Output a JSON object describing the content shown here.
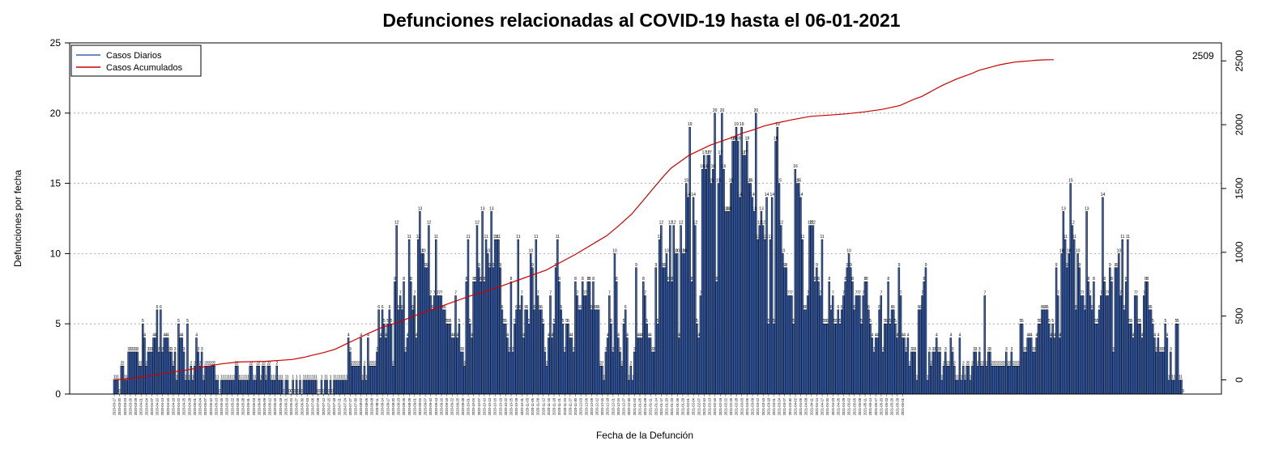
{
  "chart_data": {
    "type": "bar",
    "title": "Defunciones relacionadas al COVID-19 hasta el 06-01-2021",
    "xlabel": "Fecha de la Defunción",
    "ylabel": "Defunciones por fecha",
    "ylim": [
      0,
      25
    ],
    "y_ticks": [
      "0",
      "5",
      "10",
      "15",
      "20",
      "25"
    ],
    "y2lim": [
      -100,
      2660
    ],
    "y2_ticks": [
      "0",
      "500",
      "1000",
      "1500",
      "2000",
      "2500"
    ],
    "grid": "horizontal dotted",
    "legend_position": "top-left",
    "end_label": "2509",
    "start_date": "2020-03-17",
    "end_date": "2021-06-01",
    "x_tick_labels": [
      "2020-03-17",
      "2020-03-20",
      "2020-03-23",
      "2020-03-26",
      "2020-03-29",
      "2020-04-01",
      "2020-04-04",
      "2020-04-07",
      "2020-04-10",
      "2020-04-13",
      "2020-04-16",
      "2020-04-19",
      "2020-04-22",
      "2020-04-25",
      "2020-04-28",
      "2020-05-01",
      "2020-05-04",
      "2020-05-07",
      "2020-05-10",
      "2020-05-13",
      "2020-05-16",
      "2020-05-19",
      "2020-05-22",
      "2020-05-25",
      "2020-05-28",
      "2020-05-31",
      "2020-06-03",
      "2020-06-06",
      "2020-06-09",
      "2020-06-12",
      "2020-06-15",
      "2020-06-18",
      "2020-06-21",
      "2020-06-24",
      "2020-06-27",
      "2020-06-30",
      "2020-07-03",
      "2020-07-06",
      "2020-07-09",
      "2020-07-12",
      "2020-07-15",
      "2020-07-18",
      "2020-07-21",
      "2020-07-24",
      "2020-07-27",
      "2020-07-30",
      "2020-08-02",
      "2020-08-05",
      "2020-08-08",
      "2020-08-11",
      "2020-08-14",
      "2020-08-17",
      "2020-08-20",
      "2020-08-23",
      "2020-08-26",
      "2020-08-29",
      "2020-09-01",
      "2020-09-04",
      "2020-09-07",
      "2020-09-10",
      "2020-09-13",
      "2020-09-16",
      "2020-09-19",
      "2020-09-22",
      "2020-09-25",
      "2020-09-28",
      "2020-10-01",
      "2020-10-04",
      "2020-10-07",
      "2020-10-10",
      "2020-10-13",
      "2020-10-16",
      "2020-10-19",
      "2020-10-22",
      "2020-10-25",
      "2020-10-28",
      "2020-10-31",
      "2020-11-03",
      "2020-11-06",
      "2020-11-09",
      "2020-11-12",
      "2020-11-15",
      "2020-11-18",
      "2020-11-21",
      "2020-11-24",
      "2020-11-27",
      "2020-11-30",
      "2020-12-03",
      "2020-12-06",
      "2020-12-09",
      "2020-12-12",
      "2020-12-15",
      "2020-12-18",
      "2020-12-21",
      "2020-12-24",
      "2020-12-27",
      "2020-12-30",
      "2021-01-02",
      "2021-01-05",
      "2021-01-08",
      "2021-01-11",
      "2021-01-14",
      "2021-01-17",
      "2021-01-20",
      "2021-01-23",
      "2021-01-26",
      "2021-01-29",
      "2021-02-01",
      "2021-02-04",
      "2021-02-07",
      "2021-02-10",
      "2021-02-13",
      "2021-02-16",
      "2021-02-19",
      "2021-02-22",
      "2021-02-25",
      "2021-02-28",
      "2021-03-03",
      "2021-03-06",
      "2021-03-09",
      "2021-03-12",
      "2021-03-15",
      "2021-03-18",
      "2021-03-21",
      "2021-03-24",
      "2021-03-27",
      "2021-03-30",
      "2021-04-02",
      "2021-04-05",
      "2021-04-08",
      "2021-04-11",
      "2021-04-14",
      "2021-04-17",
      "2021-04-20",
      "2021-04-23",
      "2021-04-26",
      "2021-04-29",
      "2021-05-02",
      "2021-05-05",
      "2021-05-08",
      "2021-05-11",
      "2021-05-14",
      "2021-05-17",
      "2021-05-20",
      "2021-05-23",
      "2021-05-26",
      "2021-05-29",
      "2021-06-01"
    ],
    "series": [
      {
        "name": "Casos Diarios",
        "type": "bar",
        "color": "#3b63b5",
        "values": [
          1,
          1,
          1,
          0,
          2,
          2,
          1,
          1,
          3,
          3,
          3,
          3,
          3,
          3,
          2,
          2,
          5,
          4,
          2,
          3,
          3,
          3,
          4,
          4,
          6,
          3,
          6,
          3,
          4,
          4,
          4,
          3,
          3,
          2,
          3,
          1,
          5,
          4,
          4,
          3,
          1,
          5,
          1,
          2,
          1,
          2,
          4,
          3,
          2,
          3,
          1,
          2,
          2,
          2,
          2,
          2,
          2,
          1,
          1,
          0,
          1,
          1,
          1,
          1,
          1,
          1,
          1,
          1,
          2,
          2,
          1,
          1,
          1,
          1,
          1,
          1,
          2,
          2,
          1,
          1,
          2,
          2,
          1,
          2,
          2,
          1,
          2,
          2,
          1,
          1,
          1,
          2,
          1,
          1,
          1,
          0,
          1,
          1,
          0,
          0,
          1,
          0,
          1,
          0,
          1,
          0,
          1,
          1,
          1,
          1,
          1,
          1,
          1,
          1,
          0,
          0,
          1,
          0,
          1,
          1,
          0,
          1,
          0,
          1,
          1,
          1,
          1,
          1,
          1,
          1,
          1,
          4,
          3,
          2,
          2,
          2,
          2,
          2,
          4,
          1,
          2,
          1,
          4,
          2,
          2,
          2,
          2,
          3,
          6,
          4,
          6,
          5,
          4,
          5,
          6,
          5,
          2,
          8,
          12,
          6,
          7,
          6,
          8,
          3,
          4,
          11,
          8,
          6,
          7,
          4,
          11,
          13,
          10,
          10,
          9,
          9,
          12,
          7,
          6,
          7,
          11,
          7,
          7,
          7,
          6,
          6,
          5,
          5,
          5,
          4,
          4,
          7,
          4,
          5,
          3,
          3,
          2,
          8,
          11,
          5,
          4,
          8,
          8,
          12,
          9,
          8,
          13,
          8,
          11,
          10,
          9,
          13,
          9,
          11,
          11,
          11,
          9,
          6,
          5,
          5,
          4,
          3,
          8,
          3,
          5,
          6,
          11,
          6,
          7,
          4,
          6,
          6,
          5,
          10,
          9,
          6,
          11,
          7,
          6,
          6,
          5,
          3,
          2,
          4,
          7,
          4,
          5,
          9,
          11,
          8,
          6,
          5,
          3,
          5,
          5,
          4,
          4,
          3,
          8,
          7,
          6,
          6,
          8,
          7,
          7,
          8,
          8,
          6,
          8,
          6,
          6,
          6,
          2,
          2,
          1,
          3,
          4,
          7,
          5,
          3,
          10,
          8,
          4,
          3,
          2,
          5,
          6,
          4,
          1,
          2,
          1,
          3,
          9,
          4,
          4,
          4,
          8,
          7,
          5,
          4,
          4,
          3,
          3,
          9,
          5,
          11,
          12,
          9,
          9,
          10,
          8,
          12,
          8,
          12,
          10,
          10,
          4,
          12,
          10,
          10,
          15,
          14,
          19,
          8,
          14,
          12,
          5,
          4,
          7,
          16,
          17,
          16,
          17,
          17,
          15,
          16,
          20,
          8,
          15,
          17,
          20,
          16,
          13,
          13,
          13,
          15,
          18,
          18,
          19,
          18,
          14,
          19,
          17,
          17,
          18,
          15,
          15,
          14,
          13,
          20,
          11,
          12,
          13,
          12,
          11,
          14,
          5,
          11,
          14,
          5,
          18,
          19,
          15,
          12,
          10,
          9,
          9,
          7,
          7,
          7,
          5,
          16,
          15,
          15,
          14,
          11,
          6,
          6,
          7,
          12,
          12,
          12,
          8,
          9,
          8,
          7,
          11,
          5,
          5,
          5,
          8,
          6,
          7,
          5,
          5,
          6,
          5,
          6,
          7,
          8,
          9,
          10,
          9,
          8,
          6,
          7,
          7,
          7,
          5,
          7,
          8,
          8,
          6,
          5,
          4,
          3,
          4,
          4,
          6,
          7,
          3,
          5,
          5,
          8,
          5,
          6,
          6,
          5,
          4,
          9,
          7,
          4,
          4,
          3,
          4,
          2,
          3,
          3,
          3,
          1,
          6,
          6,
          7,
          8,
          9,
          1,
          3,
          2,
          3,
          3,
          4,
          3,
          3,
          1,
          2,
          3,
          2,
          2,
          4,
          3,
          2,
          1,
          1,
          4,
          1,
          2,
          1,
          2,
          2,
          1,
          2,
          3,
          3,
          2,
          3,
          2,
          2,
          7,
          2,
          3,
          3,
          2,
          2,
          2,
          2,
          2,
          2,
          2,
          2,
          3,
          2,
          2,
          3,
          2,
          2,
          2,
          2,
          5,
          5,
          3,
          3,
          4,
          4,
          4,
          3,
          3,
          4,
          5,
          5,
          6,
          6,
          6,
          6,
          5,
          4,
          5,
          4,
          9,
          7,
          4,
          10,
          13,
          11,
          9,
          10,
          15,
          12,
          11,
          6,
          10,
          9,
          7,
          7,
          6,
          13,
          8,
          7,
          6,
          8,
          5,
          5,
          6,
          7,
          14,
          8,
          7,
          7,
          9,
          8,
          3,
          9,
          9,
          10,
          7,
          11,
          6,
          8,
          11,
          5,
          5,
          4,
          7,
          7,
          5,
          5,
          4,
          7,
          8,
          8,
          6,
          6,
          5,
          4,
          3,
          4,
          3,
          3,
          3,
          5,
          4,
          1,
          3,
          1,
          1,
          5,
          5,
          1,
          1,
          0
        ]
      },
      {
        "name": "Casos Acumulados",
        "type": "line",
        "color": "#cc0000",
        "axis": "right",
        "x_days": [
          0,
          6,
          12,
          18,
          24,
          30,
          40,
          50,
          60,
          70,
          85,
          100,
          106,
          112,
          118,
          124,
          130,
          136,
          142,
          150,
          160,
          170,
          180,
          190,
          200,
          210,
          218,
          226,
          234,
          242,
          250,
          258,
          264,
          270,
          276,
          282,
          290,
          296,
          302,
          308,
          312,
          318,
          322,
          328,
          334,
          340,
          346,
          352,
          358,
          364,
          370,
          380,
          390,
          400,
          410,
          420,
          430,
          440,
          444,
          448,
          452,
          456,
          460,
          464,
          468,
          472,
          476,
          480,
          484,
          488,
          492,
          496,
          500,
          504,
          508,
          512,
          516,
          520,
          524,
          526
        ],
        "values": [
          1,
          5,
          15,
          28,
          40,
          55,
          75,
          100,
          125,
          140,
          145,
          160,
          175,
          195,
          215,
          240,
          280,
          320,
          360,
          410,
          455,
          510,
          560,
          610,
          660,
          700,
          740,
          780,
          820,
          860,
          920,
          980,
          1030,
          1080,
          1130,
          1200,
          1300,
          1400,
          1500,
          1600,
          1660,
          1720,
          1760,
          1800,
          1840,
          1870,
          1900,
          1935,
          1960,
          1990,
          2010,
          2040,
          2065,
          2075,
          2085,
          2100,
          2120,
          2150,
          2175,
          2200,
          2220,
          2250,
          2280,
          2310,
          2335,
          2360,
          2380,
          2400,
          2425,
          2440,
          2455,
          2470,
          2480,
          2490,
          2495,
          2500,
          2505,
          2508,
          2509,
          2509
        ]
      }
    ]
  }
}
